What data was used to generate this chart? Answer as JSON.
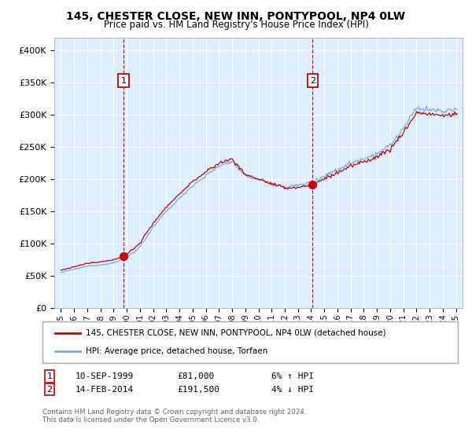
{
  "title1": "145, CHESTER CLOSE, NEW INN, PONTYPOOL, NP4 0LW",
  "title2": "Price paid vs. HM Land Registry's House Price Index (HPI)",
  "legend_line1": "145, CHESTER CLOSE, NEW INN, PONTYPOOL, NP4 0LW (detached house)",
  "legend_line2": "HPI: Average price, detached house, Torfaen",
  "footer": "Contains HM Land Registry data © Crown copyright and database right 2024.\nThis data is licensed under the Open Government Licence v3.0.",
  "ann1_num": "1",
  "ann1_date": "10-SEP-1999",
  "ann1_price": "£81,000",
  "ann1_pct": "6% ↑ HPI",
  "ann2_num": "2",
  "ann2_date": "14-FEB-2014",
  "ann2_price": "£191,500",
  "ann2_pct": "4% ↓ HPI",
  "sale1_year": 1999.75,
  "sale1_price": 81000,
  "sale2_year": 2014.12,
  "sale2_price": 191500,
  "red_color": "#cc0000",
  "blue_color": "#7aaddb",
  "plot_bg": "#ddeeff",
  "ylim": [
    0,
    420000
  ],
  "xlim_start": 1994.5,
  "xlim_end": 2025.5
}
